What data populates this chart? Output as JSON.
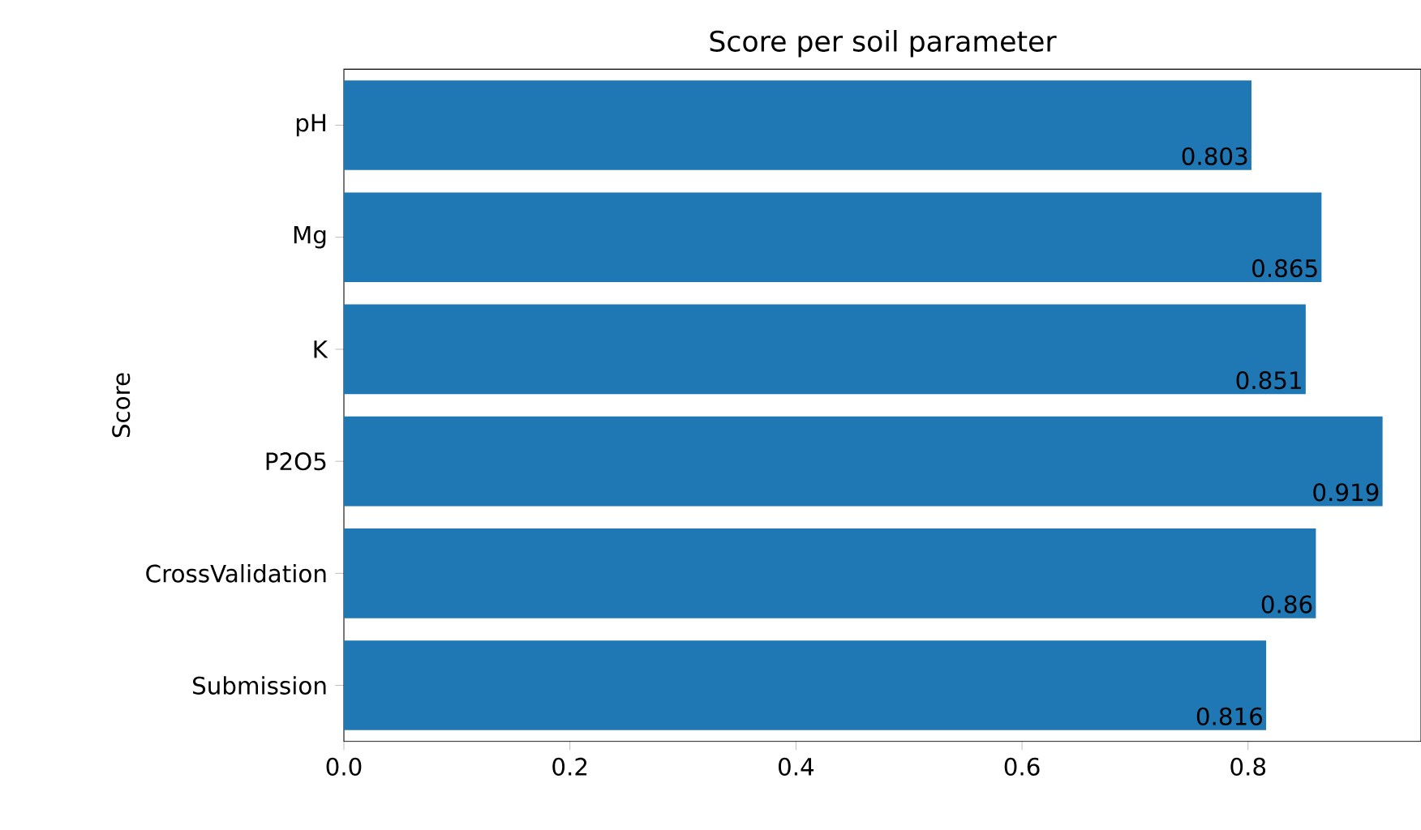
{
  "chart_data": {
    "type": "bar",
    "orientation": "horizontal",
    "title": "Score per soil parameter",
    "ylabel": "Score",
    "categories": [
      "pH",
      "Mg",
      "K",
      "P2O5",
      "CrossValidation",
      "Submission"
    ],
    "values": [
      0.803,
      0.865,
      0.851,
      0.919,
      0.86,
      0.816
    ],
    "color": "#1f77b4",
    "data_labels": true,
    "grid": false,
    "xlim": [
      0,
      0.953
    ],
    "xticks": [
      {
        "value": 0,
        "label": "0.0"
      },
      {
        "value": 0.2,
        "label": "0.2"
      },
      {
        "value": 0.4,
        "label": "0.4"
      },
      {
        "value": 0.6,
        "label": "0.6"
      },
      {
        "value": 0.8,
        "label": "0.8"
      }
    ]
  }
}
